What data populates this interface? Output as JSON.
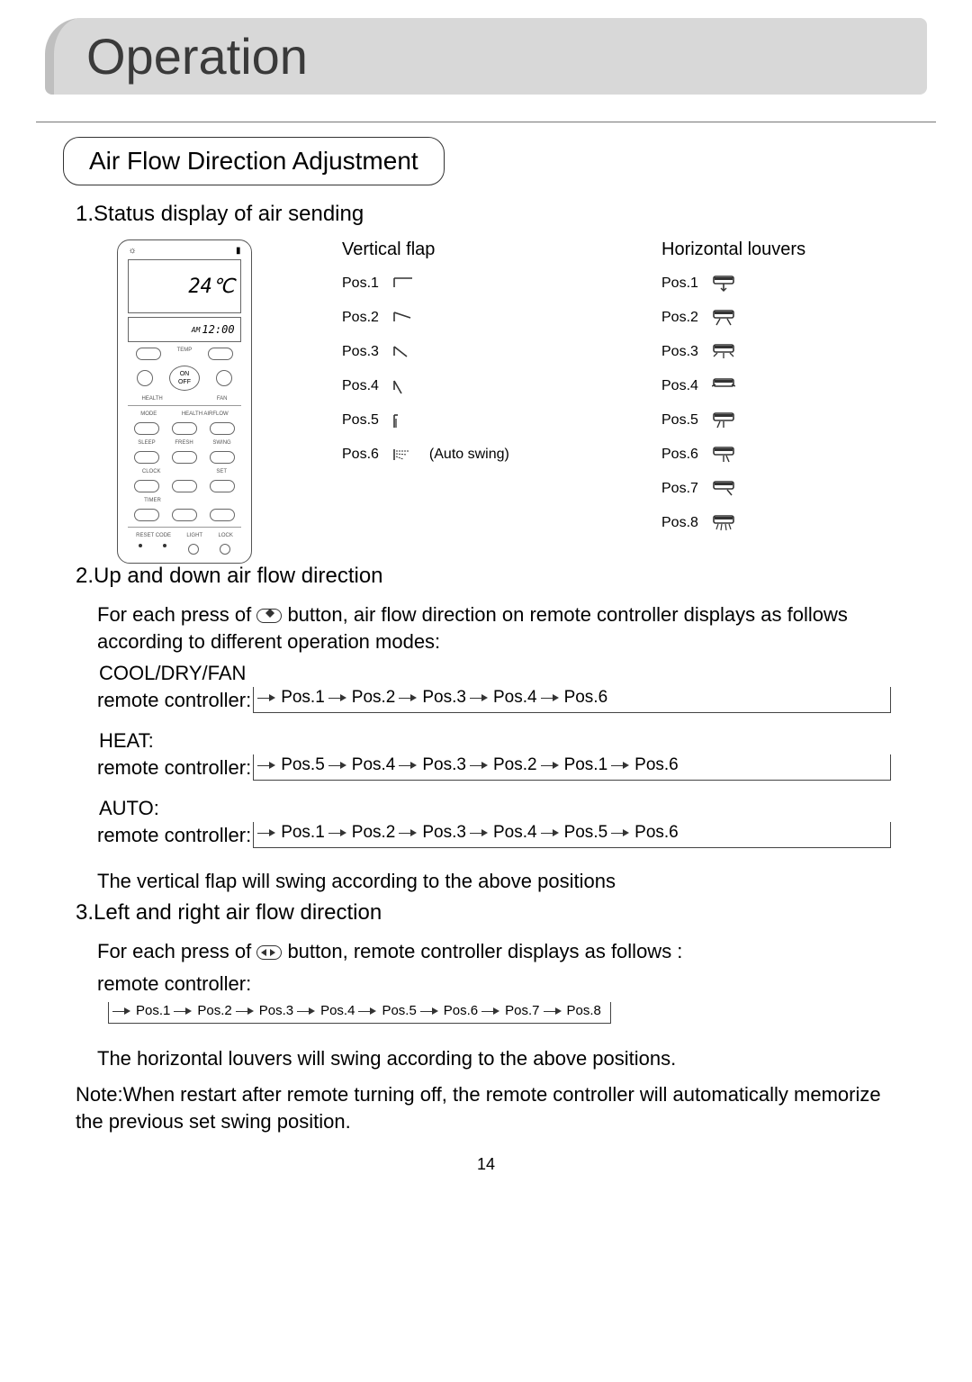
{
  "title": "Operation",
  "section": "Air Flow Direction Adjustment",
  "sub1": "1.Status display of air sending",
  "remote": {
    "temp": "24",
    "unit": "℃",
    "clock": "12:00",
    "am": "AM",
    "on": "ON",
    "off": "OFF"
  },
  "vertical": {
    "header": "Vertical flap",
    "items": [
      {
        "label": "Pos.1"
      },
      {
        "label": "Pos.2"
      },
      {
        "label": "Pos.3"
      },
      {
        "label": "Pos.4"
      },
      {
        "label": "Pos.5"
      },
      {
        "label": "Pos.6",
        "extra": "(Auto swing)"
      }
    ]
  },
  "horizontal": {
    "header": "Horizontal louvers",
    "items": [
      {
        "label": "Pos.1"
      },
      {
        "label": "Pos.2"
      },
      {
        "label": "Pos.3"
      },
      {
        "label": "Pos.4"
      },
      {
        "label": "Pos.5"
      },
      {
        "label": "Pos.6"
      },
      {
        "label": "Pos.7"
      },
      {
        "label": "Pos.8"
      }
    ]
  },
  "sub2": "2.Up and down air flow direction",
  "para2a": "For each press of ",
  "para2b": " button, air flow direction on remote controller displays as follows according to different operation modes:",
  "modes": {
    "cool": {
      "title": "COOL/DRY/FAN",
      "rc": "remote controller:",
      "seq": [
        "Pos.1",
        "Pos.2",
        "Pos.3",
        "Pos.4",
        "Pos.6"
      ]
    },
    "heat": {
      "title": "HEAT:",
      "rc": "remote controller:",
      "seq": [
        "Pos.5",
        "Pos.4",
        "Pos.3",
        "Pos.2",
        "Pos.1",
        "Pos.6"
      ]
    },
    "auto": {
      "title": "AUTO:",
      "rc": "remote controller:",
      "seq": [
        "Pos.1",
        "Pos.2",
        "Pos.3",
        "Pos.4",
        "Pos.5",
        "Pos.6"
      ]
    }
  },
  "para2c": "The vertical flap will swing according to the above positions",
  "sub3": "3.Left and right air flow direction",
  "para3a": "For each press of",
  "para3b": "   button, remote controller displays as follows :",
  "rc3": "remote controller:",
  "seq3": [
    "Pos.1",
    "Pos.2",
    "Pos.3",
    "Pos.4",
    "Pos.5",
    "Pos.6",
    "Pos.7",
    "Pos.8"
  ],
  "para3c": "The horizontal louvers will swing according to the above positions.",
  "note": "Note:When restart after remote turning off, the remote controller will automatically memorize the previous set swing position.",
  "page": "14",
  "colors": {
    "title_bg": "#d8d8d8",
    "title_border": "#bfbfbf",
    "text": "#000000"
  }
}
